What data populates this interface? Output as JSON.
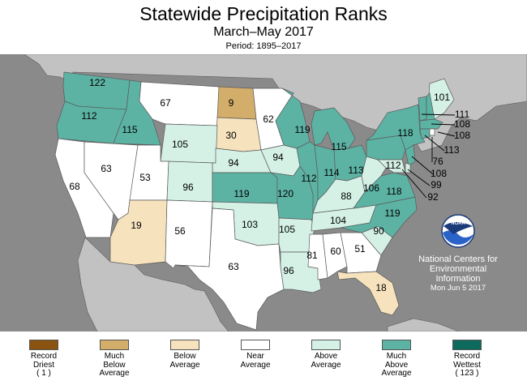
{
  "header": {
    "title": "Statewide Precipitation Ranks",
    "subtitle": "March–May 2017",
    "period": "Period: 1895–2017"
  },
  "colors": {
    "ocean": "#8a8a8a",
    "foreign_land": "#c2c2c2",
    "state_border": "#5a5a5a",
    "record_driest": "#8b5310",
    "much_below": "#d3ae6a",
    "below": "#f6e3bd",
    "near": "#ffffff",
    "above": "#d5f1e6",
    "much_above": "#5cb3a4",
    "record_wettest": "#0e6a5c"
  },
  "states": [
    {
      "id": "WA",
      "rank": "122",
      "category": "much_above"
    },
    {
      "id": "OR",
      "rank": "112",
      "category": "much_above"
    },
    {
      "id": "ID",
      "rank": "115",
      "category": "much_above"
    },
    {
      "id": "MT",
      "rank": "67",
      "category": "near"
    },
    {
      "id": "ND",
      "rank": "9",
      "category": "much_below"
    },
    {
      "id": "SD",
      "rank": "30",
      "category": "below"
    },
    {
      "id": "MN",
      "rank": "62",
      "category": "near"
    },
    {
      "id": "WY",
      "rank": "105",
      "category": "above"
    },
    {
      "id": "NE",
      "rank": "94",
      "category": "above"
    },
    {
      "id": "IA",
      "rank": "94",
      "category": "above"
    },
    {
      "id": "CA",
      "rank": "68",
      "category": "near"
    },
    {
      "id": "NV",
      "rank": "63",
      "category": "near"
    },
    {
      "id": "UT",
      "rank": "53",
      "category": "near"
    },
    {
      "id": "CO",
      "rank": "96",
      "category": "above"
    },
    {
      "id": "KS",
      "rank": "119",
      "category": "much_above"
    },
    {
      "id": "MO",
      "rank": "120",
      "category": "much_above"
    },
    {
      "id": "AZ",
      "rank": "19",
      "category": "below"
    },
    {
      "id": "NM",
      "rank": "56",
      "category": "near"
    },
    {
      "id": "OK",
      "rank": "103",
      "category": "above"
    },
    {
      "id": "TX",
      "rank": "63",
      "category": "near"
    },
    {
      "id": "AR",
      "rank": "105",
      "category": "above"
    },
    {
      "id": "LA",
      "rank": "96",
      "category": "above"
    },
    {
      "id": "MS",
      "rank": "81",
      "category": "near"
    },
    {
      "id": "AL",
      "rank": "60",
      "category": "near"
    },
    {
      "id": "GA",
      "rank": "51",
      "category": "near"
    },
    {
      "id": "FL",
      "rank": "18",
      "category": "below"
    },
    {
      "id": "WI",
      "rank": "119",
      "category": "much_above"
    },
    {
      "id": "IL",
      "rank": "112",
      "category": "much_above"
    },
    {
      "id": "MI",
      "rank": "115",
      "category": "much_above"
    },
    {
      "id": "IN",
      "rank": "114",
      "category": "much_above"
    },
    {
      "id": "OH",
      "rank": "113",
      "category": "much_above"
    },
    {
      "id": "KY",
      "rank": "88",
      "category": "above"
    },
    {
      "id": "TN",
      "rank": "104",
      "category": "above"
    },
    {
      "id": "SC",
      "rank": "90",
      "category": "above"
    },
    {
      "id": "NC",
      "rank": "119",
      "category": "much_above"
    },
    {
      "id": "VA",
      "rank": "118",
      "category": "much_above"
    },
    {
      "id": "WV",
      "rank": "106",
      "category": "above"
    },
    {
      "id": "PA",
      "rank": "112",
      "category": "much_above"
    },
    {
      "id": "NY",
      "rank": "118",
      "category": "much_above"
    },
    {
      "id": "ME",
      "rank": "101",
      "category": "above"
    },
    {
      "id": "VT",
      "rank": "111",
      "category": "much_above"
    },
    {
      "id": "NH",
      "rank": "108",
      "category": "much_above"
    },
    {
      "id": "MA",
      "rank": "108",
      "category": "much_above"
    },
    {
      "id": "CT",
      "rank": "113",
      "category": "much_above"
    },
    {
      "id": "RI",
      "rank": "76",
      "category": "near"
    },
    {
      "id": "NJ",
      "rank": "108",
      "category": "much_above"
    },
    {
      "id": "DE",
      "rank": "99",
      "category": "above"
    },
    {
      "id": "MD",
      "rank": "92",
      "category": "above"
    }
  ],
  "credit": {
    "logo_text": "NOAA",
    "line1": "National Centers for",
    "line2": "Environmental",
    "line3": "Information",
    "date": "Mon Jun  5 2017"
  },
  "legend": [
    {
      "key": "record_driest",
      "line1": "Record",
      "line2": "Driest",
      "line3": "( 1 )"
    },
    {
      "key": "much_below",
      "line1": "Much",
      "line2": "Below",
      "line3": "Average"
    },
    {
      "key": "below",
      "line1": "Below",
      "line2": "Average",
      "line3": ""
    },
    {
      "key": "near",
      "line1": "Near",
      "line2": "Average",
      "line3": ""
    },
    {
      "key": "above",
      "line1": "Above",
      "line2": "Average",
      "line3": ""
    },
    {
      "key": "much_above",
      "line1": "Much",
      "line2": "Above",
      "line3": "Average"
    },
    {
      "key": "record_wettest",
      "line1": "Record",
      "line2": "Wettest",
      "line3": "( 123 )"
    }
  ]
}
